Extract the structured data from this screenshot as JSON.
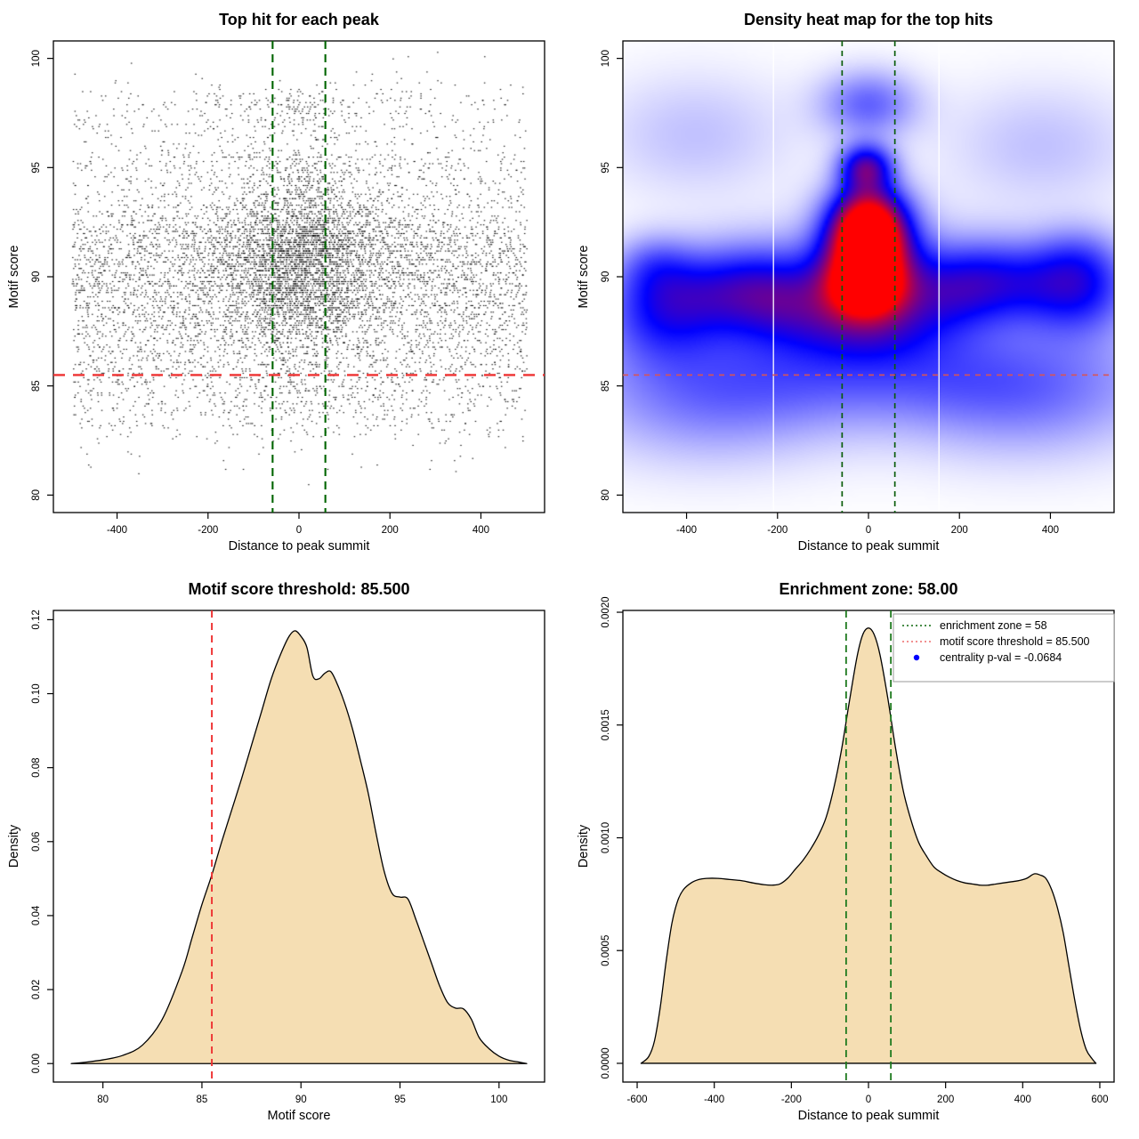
{
  "figure": {
    "background": "#ffffff",
    "layout": "2x2 R plot grid"
  },
  "chart_data": [
    {
      "type": "scatter",
      "title": "Top hit for each peak",
      "xlabel": "Distance to peak summit",
      "ylabel": "Motif score",
      "xlim": [
        -540,
        540
      ],
      "ylim": [
        79.2,
        100.8
      ],
      "xticks": {
        "values": [
          -400,
          -200,
          0,
          200,
          400
        ],
        "labels": [
          "-400",
          "-200",
          "0",
          "200",
          "400"
        ]
      },
      "yticks": {
        "values": [
          80,
          85,
          90,
          95,
          100
        ],
        "labels": [
          "80",
          "85",
          "90",
          "95",
          "100"
        ]
      },
      "point_color": "#000000",
      "points": {
        "n": 9500,
        "seed": 123456,
        "quantize_y": 0.1,
        "x_range": [
          -500,
          500
        ],
        "y_range": [
          79.6,
          100.4
        ],
        "background": {
          "weight": 0.6,
          "x": {
            "type": "uniform",
            "min": -500,
            "max": 500
          },
          "y_mix": [
            [
              89.2,
              2.3,
              0.6
            ],
            [
              91.3,
              1.0,
              0.1
            ],
            [
              93.2,
              1.7,
              0.08
            ],
            [
              95.0,
              1.1,
              0.06
            ],
            [
              84.8,
              1.5,
              0.12
            ],
            [
              97.8,
              0.8,
              0.04
            ]
          ]
        },
        "center": {
          "weight": 0.4,
          "x_mix": [
            [
              0,
              70,
              0.5
            ],
            [
              0,
              160,
              0.5
            ]
          ],
          "y_mix": [
            [
              90.3,
              1.6,
              0.42
            ],
            [
              91.8,
              0.9,
              0.2
            ],
            [
              89.0,
              1.2,
              0.15
            ],
            [
              93.4,
              1.0,
              0.08
            ],
            [
              95.0,
              0.9,
              0.05
            ],
            [
              97.6,
              0.5,
              0.05
            ],
            [
              85.3,
              1.2,
              0.05
            ]
          ]
        }
      },
      "threshold_lines": {
        "vlines": [
          {
            "x": -58,
            "color": "#006400",
            "dash": [
              9,
              6
            ],
            "width": 2.1,
            "meaning": "enrichment zone"
          },
          {
            "x": 58,
            "color": "#006400",
            "dash": [
              9,
              6
            ],
            "width": 2.1,
            "meaning": "enrichment zone"
          }
        ],
        "hlines": [
          {
            "y": 85.5,
            "color": "#ee3232",
            "dash": [
              13,
              9
            ],
            "width": 2.3,
            "meaning": "motif score threshold"
          }
        ]
      }
    },
    {
      "type": "heatmap",
      "title": "Density heat map for the top hits",
      "xlabel": "Distance to peak summit",
      "ylabel": "Motif score",
      "xlim": [
        -540,
        540
      ],
      "ylim": [
        79.2,
        100.8
      ],
      "xticks": {
        "values": [
          -400,
          -200,
          0,
          200,
          400
        ],
        "labels": [
          "-400",
          "-200",
          "0",
          "200",
          "400"
        ]
      },
      "yticks": {
        "values": [
          80,
          85,
          90,
          95,
          100
        ],
        "labels": [
          "80",
          "85",
          "90",
          "95",
          "100"
        ]
      },
      "colormap": [
        "#ffffff",
        "#0000ff",
        "#ff0000"
      ],
      "hotspot": {
        "x": 0,
        "y": 91.8
      },
      "blobs": [
        [
          0,
          91.8,
          55,
          1.1,
          1.0
        ],
        [
          -5,
          89.6,
          60,
          1.0,
          0.8
        ],
        [
          0,
          90.7,
          90,
          1.8,
          0.55
        ],
        [
          -5,
          95.0,
          42,
          0.75,
          0.6
        ],
        [
          0,
          97.9,
          75,
          1.1,
          0.3
        ],
        [
          0,
          87.8,
          130,
          1.2,
          0.3
        ],
        [
          -350,
          89.2,
          130,
          1.4,
          0.3
        ],
        [
          -460,
          88.3,
          90,
          1.6,
          0.28
        ],
        [
          350,
          89.6,
          130,
          1.3,
          0.3
        ],
        [
          470,
          89.3,
          80,
          1.5,
          0.28
        ],
        [
          -180,
          88.9,
          90,
          1.3,
          0.25
        ],
        [
          170,
          89.3,
          80,
          1.2,
          0.22
        ],
        [
          0,
          85.8,
          380,
          1.8,
          0.28
        ],
        [
          -350,
          84.0,
          200,
          2.0,
          0.18
        ],
        [
          350,
          84.2,
          200,
          2.0,
          0.18
        ],
        [
          -380,
          96.5,
          150,
          2.0,
          0.12
        ],
        [
          380,
          96.0,
          150,
          2.0,
          0.12
        ],
        [
          0,
          93.3,
          60,
          0.9,
          0.35
        ],
        [
          -250,
          90.0,
          100,
          1.5,
          0.22
        ],
        [
          250,
          90.2,
          90,
          1.4,
          0.22
        ],
        [
          -470,
          90.6,
          60,
          1.0,
          0.18
        ],
        [
          460,
          91.0,
          70,
          1.1,
          0.15
        ]
      ],
      "white_vlines": [
        -209,
        155
      ],
      "threshold_lines": {
        "vlines": [
          {
            "x": -58,
            "color": "#0b5d0b",
            "dash": [
              6,
              5
            ],
            "width": 1.7,
            "meaning": "enrichment zone"
          },
          {
            "x": 58,
            "color": "#0b5d0b",
            "dash": [
              6,
              5
            ],
            "width": 1.7,
            "meaning": "enrichment zone"
          }
        ],
        "hlines": [
          {
            "y": 85.5,
            "color": "#d95454",
            "dash": [
              6,
              6
            ],
            "width": 1.7,
            "meaning": "motif score threshold"
          }
        ]
      }
    },
    {
      "type": "density",
      "title": "Motif score threshold: 85.500",
      "xlabel": "Motif score",
      "ylabel": "Density",
      "xlim": [
        77.5,
        102.3
      ],
      "ylim": [
        -0.005,
        0.1225
      ],
      "xticks": {
        "values": [
          80,
          85,
          90,
          95,
          100
        ],
        "labels": [
          "80",
          "85",
          "90",
          "95",
          "100"
        ]
      },
      "yticks": {
        "values": [
          0.0,
          0.02,
          0.04,
          0.06,
          0.08,
          0.1,
          0.12
        ],
        "labels": [
          "0.00",
          "0.02",
          "0.04",
          "0.06",
          "0.08",
          "0.10",
          "0.12"
        ]
      },
      "fill": "#f5deb3",
      "stroke": "#000000",
      "curve": [
        [
          78.4,
          0.0
        ],
        [
          79.0,
          0.0003
        ],
        [
          80.0,
          0.001
        ],
        [
          81.0,
          0.0022
        ],
        [
          82.0,
          0.005
        ],
        [
          83.0,
          0.012
        ],
        [
          84.0,
          0.025
        ],
        [
          84.5,
          0.034
        ],
        [
          85.0,
          0.043
        ],
        [
          85.5,
          0.051
        ],
        [
          86.0,
          0.06
        ],
        [
          86.5,
          0.0685
        ],
        [
          87.0,
          0.077
        ],
        [
          87.5,
          0.086
        ],
        [
          88.0,
          0.095
        ],
        [
          88.5,
          0.104
        ],
        [
          89.0,
          0.111
        ],
        [
          89.4,
          0.1155
        ],
        [
          89.7,
          0.117
        ],
        [
          90.0,
          0.1155
        ],
        [
          90.3,
          0.1125
        ],
        [
          90.6,
          0.1048
        ],
        [
          90.9,
          0.104
        ],
        [
          91.2,
          0.1055
        ],
        [
          91.5,
          0.106
        ],
        [
          91.8,
          0.103
        ],
        [
          92.2,
          0.0975
        ],
        [
          92.6,
          0.0905
        ],
        [
          93.0,
          0.082
        ],
        [
          93.4,
          0.073
        ],
        [
          93.8,
          0.062
        ],
        [
          94.2,
          0.052
        ],
        [
          94.6,
          0.046
        ],
        [
          95.0,
          0.045
        ],
        [
          95.4,
          0.0445
        ],
        [
          95.8,
          0.039
        ],
        [
          96.2,
          0.033
        ],
        [
          96.6,
          0.027
        ],
        [
          97.0,
          0.021
        ],
        [
          97.4,
          0.0165
        ],
        [
          97.8,
          0.015
        ],
        [
          98.2,
          0.0148
        ],
        [
          98.6,
          0.012
        ],
        [
          99.0,
          0.007
        ],
        [
          99.5,
          0.004
        ],
        [
          100.0,
          0.002
        ],
        [
          100.5,
          0.0009
        ],
        [
          101.0,
          0.0004
        ],
        [
          101.4,
          0.0
        ]
      ],
      "threshold_lines": {
        "vlines": [
          {
            "x": 85.5,
            "color": "#ee3232",
            "dash": [
              8,
              6
            ],
            "width": 1.9,
            "meaning": "motif score threshold"
          }
        ],
        "hlines": []
      }
    },
    {
      "type": "density",
      "title": "Enrichment zone: 58.00",
      "xlabel": "Distance to peak summit",
      "ylabel": "Density",
      "xlim": [
        -637,
        637
      ],
      "ylim": [
        -8.3e-05,
        0.002008
      ],
      "xticks": {
        "values": [
          -600,
          -400,
          -200,
          0,
          200,
          400,
          600
        ],
        "labels": [
          "-600",
          "-400",
          "-200",
          "0",
          "200",
          "400",
          "600"
        ]
      },
      "yticks": {
        "values": [
          0.0,
          0.0005,
          0.001,
          0.0015,
          0.002
        ],
        "labels": [
          "0.0000",
          "0.0005",
          "0.0010",
          "0.0015",
          "0.0020"
        ]
      },
      "fill": "#f5deb3",
      "stroke": "#000000",
      "curve": [
        [
          -590,
          0.0
        ],
        [
          -570,
          3e-05
        ],
        [
          -555,
          0.0001
        ],
        [
          -540,
          0.00025
        ],
        [
          -525,
          0.00045
        ],
        [
          -510,
          0.00062
        ],
        [
          -495,
          0.00072
        ],
        [
          -480,
          0.00077
        ],
        [
          -460,
          0.0008
        ],
        [
          -440,
          0.000815
        ],
        [
          -420,
          0.00082
        ],
        [
          -390,
          0.00082
        ],
        [
          -360,
          0.000815
        ],
        [
          -330,
          0.00081
        ],
        [
          -300,
          0.0008
        ],
        [
          -270,
          0.000792
        ],
        [
          -250,
          0.00079
        ],
        [
          -230,
          0.000795
        ],
        [
          -210,
          0.00082
        ],
        [
          -190,
          0.00086
        ],
        [
          -170,
          0.0009
        ],
        [
          -150,
          0.00095
        ],
        [
          -130,
          0.00101
        ],
        [
          -110,
          0.00109
        ],
        [
          -90,
          0.00122
        ],
        [
          -70,
          0.00139
        ],
        [
          -50,
          0.0016
        ],
        [
          -30,
          0.0018
        ],
        [
          -15,
          0.0019
        ],
        [
          0,
          0.00193
        ],
        [
          15,
          0.0019
        ],
        [
          30,
          0.00181
        ],
        [
          50,
          0.00162
        ],
        [
          70,
          0.0014
        ],
        [
          90,
          0.00121
        ],
        [
          110,
          0.00108
        ],
        [
          130,
          0.00098
        ],
        [
          150,
          0.00092
        ],
        [
          170,
          0.00087
        ],
        [
          190,
          0.000845
        ],
        [
          210,
          0.000825
        ],
        [
          230,
          0.00081
        ],
        [
          250,
          0.0008
        ],
        [
          270,
          0.000795
        ],
        [
          290,
          0.00079
        ],
        [
          310,
          0.00079
        ],
        [
          330,
          0.000795
        ],
        [
          350,
          0.0008
        ],
        [
          370,
          0.000805
        ],
        [
          390,
          0.00081
        ],
        [
          410,
          0.00082
        ],
        [
          430,
          0.00084
        ],
        [
          445,
          0.000835
        ],
        [
          460,
          0.00082
        ],
        [
          475,
          0.00077
        ],
        [
          490,
          0.00069
        ],
        [
          505,
          0.00058
        ],
        [
          520,
          0.00043
        ],
        [
          535,
          0.00028
        ],
        [
          550,
          0.00015
        ],
        [
          565,
          6e-05
        ],
        [
          580,
          2e-05
        ],
        [
          590,
          0.0
        ]
      ],
      "threshold_lines": {
        "vlines": [
          {
            "x": -58,
            "color": "#1e7a1e",
            "dash": [
              8,
              5
            ],
            "width": 1.8,
            "meaning": "enrichment zone"
          },
          {
            "x": 58,
            "color": "#1e7a1e",
            "dash": [
              8,
              5
            ],
            "width": 1.8,
            "meaning": "enrichment zone"
          }
        ],
        "hlines": []
      },
      "legend": {
        "border_color": "#999999",
        "items": [
          {
            "type": "dotted-line",
            "color": "#2e7d2e",
            "label": "enrichment zone = 58"
          },
          {
            "type": "dotted-line",
            "color": "#f08080",
            "label": "motif score threshold = 85.500"
          },
          {
            "type": "point",
            "color": "#0000ff",
            "label": "centrality p-val = -0.0684"
          }
        ]
      }
    }
  ]
}
